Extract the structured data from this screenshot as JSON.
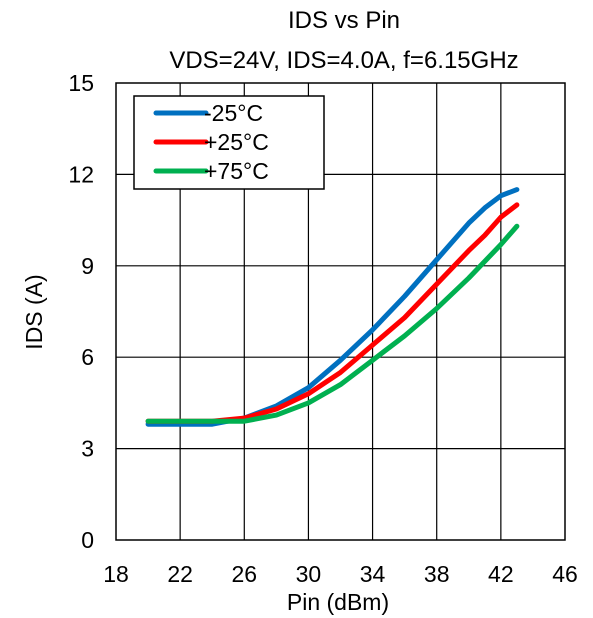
{
  "chart_data": {
    "type": "line",
    "title": "IDS vs Pin",
    "subtitle": "VDS=24V, IDS=4.0A, f=6.15GHz",
    "xlabel": "Pin (dBm)",
    "ylabel": "IDS (A)",
    "xlim": [
      18,
      46
    ],
    "ylim": [
      0,
      15
    ],
    "x_ticks": [
      18,
      22,
      26,
      30,
      34,
      38,
      42,
      46
    ],
    "y_ticks": [
      0,
      3,
      6,
      9,
      12,
      15
    ],
    "x_tick_labels": [
      "18",
      "22",
      "26",
      "30",
      "34",
      "38",
      "42",
      "46"
    ],
    "y_tick_labels": [
      "0",
      "3",
      "6",
      "9",
      "12",
      "15"
    ],
    "grid": true,
    "legend_position": "top-left",
    "series": [
      {
        "name": "-25°C",
        "color": "#0070C0",
        "x": [
          20,
          22,
          24,
          26,
          28,
          30,
          32,
          34,
          36,
          38,
          40,
          41,
          42,
          43
        ],
        "y": [
          3.8,
          3.8,
          3.8,
          4.0,
          4.4,
          5.0,
          5.9,
          6.9,
          8.0,
          9.2,
          10.4,
          10.9,
          11.3,
          11.5
        ]
      },
      {
        "name": "+25°C",
        "color": "#FF0000",
        "x": [
          20,
          22,
          24,
          26,
          28,
          30,
          32,
          34,
          36,
          38,
          40,
          41,
          42,
          43
        ],
        "y": [
          3.9,
          3.9,
          3.9,
          4.0,
          4.3,
          4.8,
          5.5,
          6.4,
          7.3,
          8.4,
          9.5,
          10.0,
          10.6,
          11.0
        ]
      },
      {
        "name": "+75°C",
        "color": "#00B050",
        "x": [
          20,
          22,
          24,
          26,
          28,
          30,
          32,
          34,
          36,
          38,
          40,
          42,
          43
        ],
        "y": [
          3.9,
          3.9,
          3.9,
          3.9,
          4.1,
          4.5,
          5.1,
          5.9,
          6.7,
          7.6,
          8.6,
          9.7,
          10.3
        ]
      }
    ]
  }
}
